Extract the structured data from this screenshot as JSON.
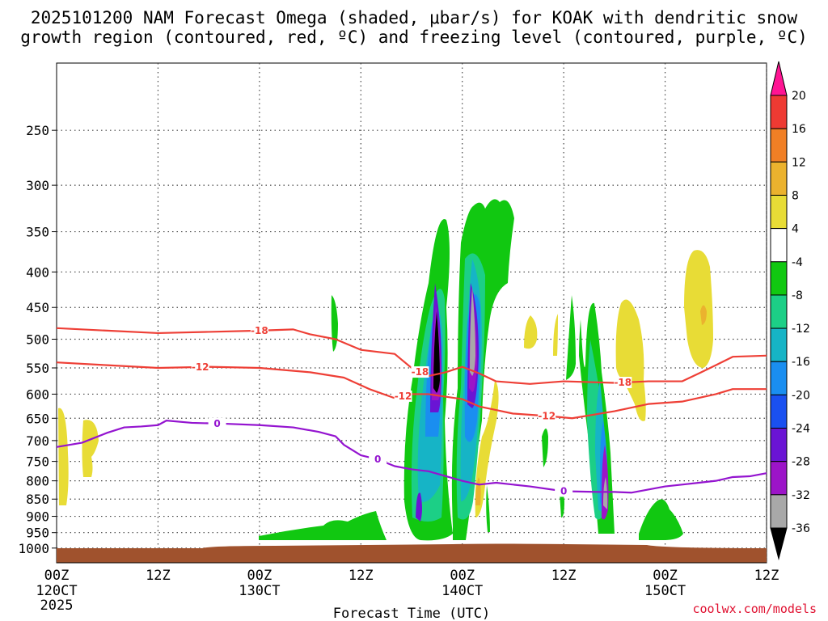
{
  "chart_data": {
    "type": "time-height contour",
    "title_line1": "2025101200 NAM Forecast Omega (shaded, μbar/s) for KOAK with dendritic snow",
    "title_line2": "growth region (contoured, red, ºC) and freezing level (contoured, purple, ºC)",
    "xlabel": "Forecast Time (UTC)",
    "credit": "coolwx.com/models",
    "year_label": "2025",
    "x_ticks": [
      {
        "t": 0,
        "hour": "00Z",
        "date": "120CT"
      },
      {
        "t": 12,
        "hour": "12Z",
        "date": ""
      },
      {
        "t": 24,
        "hour": "00Z",
        "date": "130CT"
      },
      {
        "t": 36,
        "hour": "12Z",
        "date": ""
      },
      {
        "t": 48,
        "hour": "00Z",
        "date": "140CT"
      },
      {
        "t": 60,
        "hour": "12Z",
        "date": ""
      },
      {
        "t": 72,
        "hour": "00Z",
        "date": "150CT"
      },
      {
        "t": 84,
        "hour": "12Z",
        "date": ""
      }
    ],
    "xlim": [
      0,
      84
    ],
    "ylim_hPa": [
      1050,
      200
    ],
    "y_ticks": [
      "250",
      "300",
      "350",
      "400",
      "450",
      "500",
      "550",
      "600",
      "650",
      "700",
      "750",
      "800",
      "850",
      "900",
      "950",
      "1000"
    ],
    "colorbar": {
      "labels": [
        "20",
        "16",
        "12",
        "8",
        "4",
        "-4",
        "-8",
        "-12",
        "-16",
        "-20",
        "-24",
        "-28",
        "-32",
        "-36"
      ],
      "colors": [
        "#ff1493",
        "#ee3a33",
        "#f07f25",
        "#ebb22e",
        "#e8dc36",
        "#ffffff",
        "#11c811",
        "#1ccf86",
        "#16b4c6",
        "#1a8ef0",
        "#1a50f0",
        "#6a14d4",
        "#9c14c8",
        "#a8a8a8",
        "#000000"
      ]
    },
    "dgz_contours": [
      {
        "label": "-18",
        "color": "#ee3f36",
        "points": [
          [
            0,
            482
          ],
          [
            6,
            486
          ],
          [
            12,
            490
          ],
          [
            18,
            488
          ],
          [
            24,
            486
          ],
          [
            28,
            484
          ],
          [
            30,
            492
          ],
          [
            33,
            500
          ],
          [
            36,
            518
          ],
          [
            40,
            525
          ],
          [
            42,
            550
          ],
          [
            44,
            565
          ],
          [
            46,
            558
          ],
          [
            48,
            548
          ],
          [
            50,
            560
          ],
          [
            52,
            575
          ],
          [
            56,
            580
          ],
          [
            60,
            575
          ],
          [
            66,
            578
          ],
          [
            70,
            575
          ],
          [
            74,
            575
          ],
          [
            76,
            560
          ],
          [
            78,
            545
          ],
          [
            80,
            530
          ],
          [
            84,
            528
          ]
        ]
      },
      {
        "label": "-12",
        "color": "#ee3f36",
        "points": [
          [
            0,
            540
          ],
          [
            6,
            545
          ],
          [
            12,
            550
          ],
          [
            18,
            548
          ],
          [
            24,
            550
          ],
          [
            30,
            558
          ],
          [
            34,
            568
          ],
          [
            37,
            590
          ],
          [
            40,
            608
          ],
          [
            42,
            600
          ],
          [
            44,
            600
          ],
          [
            46,
            605
          ],
          [
            48,
            610
          ],
          [
            50,
            625
          ],
          [
            54,
            640
          ],
          [
            58,
            645
          ],
          [
            61,
            650
          ],
          [
            66,
            635
          ],
          [
            70,
            620
          ],
          [
            74,
            615
          ],
          [
            78,
            600
          ],
          [
            80,
            590
          ],
          [
            84,
            590
          ]
        ]
      },
      {
        "label": "0",
        "color": "#9414d0",
        "points": [
          [
            0,
            715
          ],
          [
            3,
            705
          ],
          [
            6,
            682
          ],
          [
            8,
            670
          ],
          [
            10,
            668
          ],
          [
            12,
            665
          ],
          [
            13,
            655
          ],
          [
            16,
            660
          ],
          [
            20,
            662
          ],
          [
            24,
            665
          ],
          [
            28,
            670
          ],
          [
            31,
            680
          ],
          [
            33,
            690
          ],
          [
            34,
            710
          ],
          [
            36,
            735
          ],
          [
            38,
            745
          ],
          [
            40,
            762
          ],
          [
            42,
            770
          ],
          [
            44,
            775
          ],
          [
            48,
            800
          ],
          [
            50,
            810
          ],
          [
            52,
            805
          ],
          [
            56,
            815
          ],
          [
            60,
            828
          ],
          [
            64,
            830
          ],
          [
            66,
            830
          ],
          [
            68,
            832
          ],
          [
            72,
            815
          ],
          [
            74,
            810
          ],
          [
            76,
            805
          ],
          [
            78,
            800
          ],
          [
            80,
            790
          ],
          [
            82,
            788
          ],
          [
            84,
            780
          ]
        ]
      }
    ]
  }
}
